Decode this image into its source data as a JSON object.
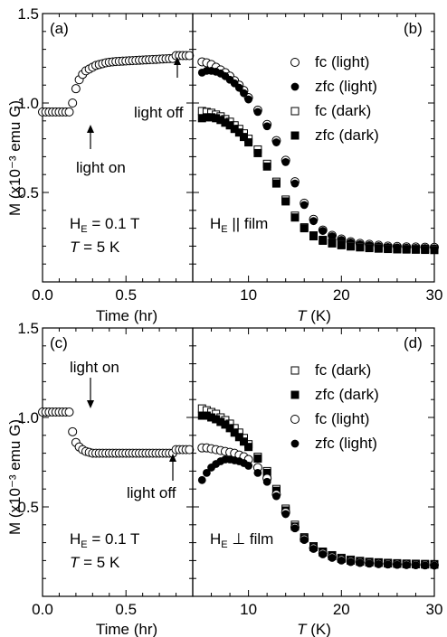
{
  "figure": {
    "ylabel": "M (x10⁻³ emu G)",
    "xlabel_time": "Time (hr)",
    "xlabel_temp": "T (K)"
  },
  "chart_data": [
    {
      "type": "scatter",
      "panel": "(a)",
      "xlabel": "Time (hr)",
      "ylabel": "M (x10⁻³ emu G)",
      "xlim": [
        0.0,
        0.9
      ],
      "ylim": [
        0.0,
        1.5
      ],
      "xticks": [
        0.0,
        0.5
      ],
      "yticks": [
        0.5,
        1.0,
        1.5
      ],
      "annotations": [
        "light on",
        "light off",
        "H_E = 0.1 T",
        "T = 5 K"
      ],
      "series": [
        {
          "marker": "open-circle",
          "x": [
            0.0,
            0.02,
            0.04,
            0.06,
            0.08,
            0.1,
            0.12,
            0.14,
            0.16,
            0.18,
            0.2,
            0.22,
            0.24,
            0.26,
            0.28,
            0.3,
            0.32,
            0.34,
            0.36,
            0.38,
            0.4,
            0.42,
            0.44,
            0.46,
            0.48,
            0.5,
            0.52,
            0.54,
            0.56,
            0.58,
            0.6,
            0.62,
            0.64,
            0.66,
            0.68,
            0.7,
            0.72,
            0.74,
            0.76,
            0.78,
            0.8,
            0.82,
            0.84,
            0.86,
            0.88
          ],
          "y": [
            0.95,
            0.95,
            0.95,
            0.95,
            0.95,
            0.95,
            0.95,
            0.95,
            0.95,
            1.0,
            1.08,
            1.13,
            1.16,
            1.18,
            1.19,
            1.2,
            1.21,
            1.215,
            1.22,
            1.225,
            1.228,
            1.23,
            1.232,
            1.233,
            1.234,
            1.235,
            1.236,
            1.237,
            1.238,
            1.239,
            1.24,
            1.241,
            1.242,
            1.243,
            1.244,
            1.245,
            1.246,
            1.247,
            1.248,
            1.249,
            1.265,
            1.265,
            1.265,
            1.265,
            1.265
          ]
        }
      ]
    },
    {
      "type": "scatter",
      "panel": "(b)",
      "xlabel": "T (K)",
      "xlim": [
        4,
        30
      ],
      "ylim": [
        0.0,
        1.5
      ],
      "xticks": [
        10,
        20,
        30
      ],
      "annotations": [
        "H_E || film"
      ],
      "legend": "top-right",
      "series": [
        {
          "name": "fc (light)",
          "marker": "open-circle",
          "x": [
            5,
            5.5,
            6,
            6.5,
            7,
            7.5,
            8,
            8.5,
            9,
            9.5,
            10,
            11,
            12,
            13,
            14,
            15,
            16,
            17,
            18,
            19,
            20,
            21,
            22,
            23,
            24,
            25,
            26,
            27,
            28,
            29,
            30
          ],
          "y": [
            1.23,
            1.225,
            1.215,
            1.2,
            1.185,
            1.17,
            1.15,
            1.125,
            1.1,
            1.07,
            1.03,
            0.96,
            0.88,
            0.79,
            0.68,
            0.56,
            0.44,
            0.35,
            0.29,
            0.26,
            0.24,
            0.225,
            0.215,
            0.21,
            0.205,
            0.2,
            0.198,
            0.196,
            0.195,
            0.194,
            0.193
          ]
        },
        {
          "name": "zfc (light)",
          "marker": "filled-circle",
          "x": [
            5,
            5.5,
            6,
            6.5,
            7,
            7.5,
            8,
            8.5,
            9,
            9.5,
            10,
            11,
            12,
            13,
            14,
            15,
            16,
            17,
            18,
            19,
            20,
            21,
            22,
            23,
            24,
            25,
            26,
            27,
            28,
            29,
            30
          ],
          "y": [
            1.17,
            1.18,
            1.18,
            1.175,
            1.165,
            1.15,
            1.13,
            1.11,
            1.085,
            1.055,
            1.02,
            0.95,
            0.87,
            0.78,
            0.67,
            0.55,
            0.43,
            0.34,
            0.285,
            0.255,
            0.235,
            0.22,
            0.21,
            0.205,
            0.2,
            0.195,
            0.193,
            0.191,
            0.19,
            0.189,
            0.188
          ]
        },
        {
          "name": "fc (dark)",
          "marker": "open-square",
          "x": [
            5,
            5.5,
            6,
            6.5,
            7,
            7.5,
            8,
            8.5,
            9,
            9.5,
            10,
            11,
            12,
            13,
            14,
            15,
            16,
            17,
            18,
            19,
            20,
            21,
            22,
            23,
            24,
            25,
            26,
            27,
            28,
            29,
            30
          ],
          "y": [
            0.955,
            0.95,
            0.945,
            0.935,
            0.925,
            0.91,
            0.895,
            0.875,
            0.855,
            0.83,
            0.8,
            0.74,
            0.66,
            0.56,
            0.46,
            0.37,
            0.305,
            0.26,
            0.235,
            0.22,
            0.21,
            0.203,
            0.198,
            0.194,
            0.191,
            0.189,
            0.187,
            0.186,
            0.185,
            0.184,
            0.183
          ]
        },
        {
          "name": "zfc (dark)",
          "marker": "filled-square",
          "x": [
            5,
            5.5,
            6,
            6.5,
            7,
            7.5,
            8,
            8.5,
            9,
            9.5,
            10,
            11,
            12,
            13,
            14,
            15,
            16,
            17,
            18,
            19,
            20,
            21,
            22,
            23,
            24,
            25,
            26,
            27,
            28,
            29,
            30
          ],
          "y": [
            0.915,
            0.92,
            0.92,
            0.915,
            0.905,
            0.89,
            0.875,
            0.855,
            0.835,
            0.81,
            0.78,
            0.72,
            0.645,
            0.55,
            0.45,
            0.36,
            0.3,
            0.255,
            0.23,
            0.215,
            0.205,
            0.198,
            0.193,
            0.189,
            0.186,
            0.184,
            0.182,
            0.181,
            0.18,
            0.179,
            0.178
          ]
        }
      ]
    },
    {
      "type": "scatter",
      "panel": "(c)",
      "xlabel": "Time (hr)",
      "ylabel": "M (x10⁻³ emu G)",
      "xlim": [
        0.0,
        0.9
      ],
      "ylim": [
        0.0,
        1.5
      ],
      "xticks": [
        0.0,
        0.5
      ],
      "yticks": [
        0.5,
        1.0,
        1.5
      ],
      "annotations": [
        "light on",
        "light off",
        "H_E = 0.1 T",
        "T = 5 K"
      ],
      "series": [
        {
          "marker": "open-circle",
          "x": [
            0.0,
            0.02,
            0.04,
            0.06,
            0.08,
            0.1,
            0.12,
            0.14,
            0.16,
            0.18,
            0.2,
            0.22,
            0.24,
            0.26,
            0.28,
            0.3,
            0.32,
            0.34,
            0.36,
            0.38,
            0.4,
            0.42,
            0.44,
            0.46,
            0.48,
            0.5,
            0.52,
            0.54,
            0.56,
            0.58,
            0.6,
            0.62,
            0.64,
            0.66,
            0.68,
            0.7,
            0.72,
            0.74,
            0.76,
            0.78,
            0.8,
            0.82,
            0.84,
            0.86,
            0.88
          ],
          "y": [
            1.03,
            1.03,
            1.03,
            1.03,
            1.03,
            1.03,
            1.03,
            1.03,
            1.03,
            0.92,
            0.86,
            0.835,
            0.82,
            0.81,
            0.805,
            0.8,
            0.8,
            0.8,
            0.8,
            0.8,
            0.8,
            0.8,
            0.8,
            0.8,
            0.8,
            0.8,
            0.8,
            0.8,
            0.8,
            0.8,
            0.8,
            0.8,
            0.8,
            0.8,
            0.8,
            0.8,
            0.8,
            0.8,
            0.8,
            0.8,
            0.82,
            0.82,
            0.82,
            0.82,
            0.82
          ]
        }
      ]
    },
    {
      "type": "scatter",
      "panel": "(d)",
      "xlabel": "T (K)",
      "xlim": [
        4,
        30
      ],
      "ylim": [
        0.0,
        1.5
      ],
      "xticks": [
        10,
        20,
        30
      ],
      "annotations": [
        "H_E ⊥ film"
      ],
      "legend": "top-right",
      "series": [
        {
          "name": "fc (dark)",
          "marker": "open-square",
          "x": [
            5,
            5.5,
            6,
            6.5,
            7,
            7.5,
            8,
            8.5,
            9,
            9.5,
            10,
            11,
            12,
            13,
            14,
            15,
            16,
            17,
            18,
            19,
            20,
            21,
            22,
            23,
            24,
            25,
            26,
            27,
            28,
            29,
            30
          ],
          "y": [
            1.05,
            1.04,
            1.03,
            1.02,
            1.0,
            0.985,
            0.965,
            0.94,
            0.915,
            0.885,
            0.85,
            0.78,
            0.7,
            0.6,
            0.49,
            0.4,
            0.33,
            0.28,
            0.25,
            0.23,
            0.215,
            0.205,
            0.198,
            0.193,
            0.19,
            0.187,
            0.185,
            0.183,
            0.182,
            0.181,
            0.18
          ]
        },
        {
          "name": "zfc (dark)",
          "marker": "filled-square",
          "x": [
            5,
            5.5,
            6,
            6.5,
            7,
            7.5,
            8,
            8.5,
            9,
            9.5,
            10,
            11,
            12,
            13,
            14,
            15,
            16,
            17,
            18,
            19,
            20,
            21,
            22,
            23,
            24,
            25,
            26,
            27,
            28,
            29,
            30
          ],
          "y": [
            1.01,
            1.01,
            1.0,
            0.99,
            0.975,
            0.96,
            0.94,
            0.915,
            0.89,
            0.865,
            0.835,
            0.77,
            0.69,
            0.59,
            0.48,
            0.39,
            0.325,
            0.275,
            0.245,
            0.225,
            0.21,
            0.2,
            0.194,
            0.19,
            0.187,
            0.184,
            0.182,
            0.18,
            0.179,
            0.178,
            0.177
          ]
        },
        {
          "name": "fc (light)",
          "marker": "open-circle",
          "x": [
            5,
            5.5,
            6,
            6.5,
            7,
            7.5,
            8,
            8.5,
            9,
            9.5,
            10,
            11,
            12,
            13,
            14,
            15,
            16,
            17,
            18,
            19,
            20,
            21,
            22,
            23,
            24,
            25,
            26,
            27,
            28,
            29,
            30
          ],
          "y": [
            0.83,
            0.83,
            0.825,
            0.82,
            0.815,
            0.81,
            0.805,
            0.8,
            0.79,
            0.78,
            0.765,
            0.72,
            0.66,
            0.57,
            0.47,
            0.385,
            0.32,
            0.27,
            0.24,
            0.22,
            0.205,
            0.196,
            0.19,
            0.186,
            0.183,
            0.181,
            0.179,
            0.178,
            0.177,
            0.176,
            0.175
          ]
        },
        {
          "name": "zfc (light)",
          "marker": "filled-circle",
          "x": [
            5,
            5.5,
            6,
            6.5,
            7,
            7.5,
            8,
            8.5,
            9,
            9.5,
            10,
            11,
            12,
            13,
            14,
            15,
            16,
            17,
            18,
            19,
            20,
            21,
            22,
            23,
            24,
            25,
            26,
            27,
            28,
            29,
            30
          ],
          "y": [
            0.65,
            0.69,
            0.72,
            0.74,
            0.755,
            0.765,
            0.765,
            0.76,
            0.755,
            0.745,
            0.73,
            0.69,
            0.64,
            0.56,
            0.46,
            0.38,
            0.315,
            0.265,
            0.235,
            0.215,
            0.2,
            0.192,
            0.187,
            0.183,
            0.18,
            0.178,
            0.176,
            0.175,
            0.174,
            0.173,
            0.172
          ]
        }
      ]
    }
  ]
}
